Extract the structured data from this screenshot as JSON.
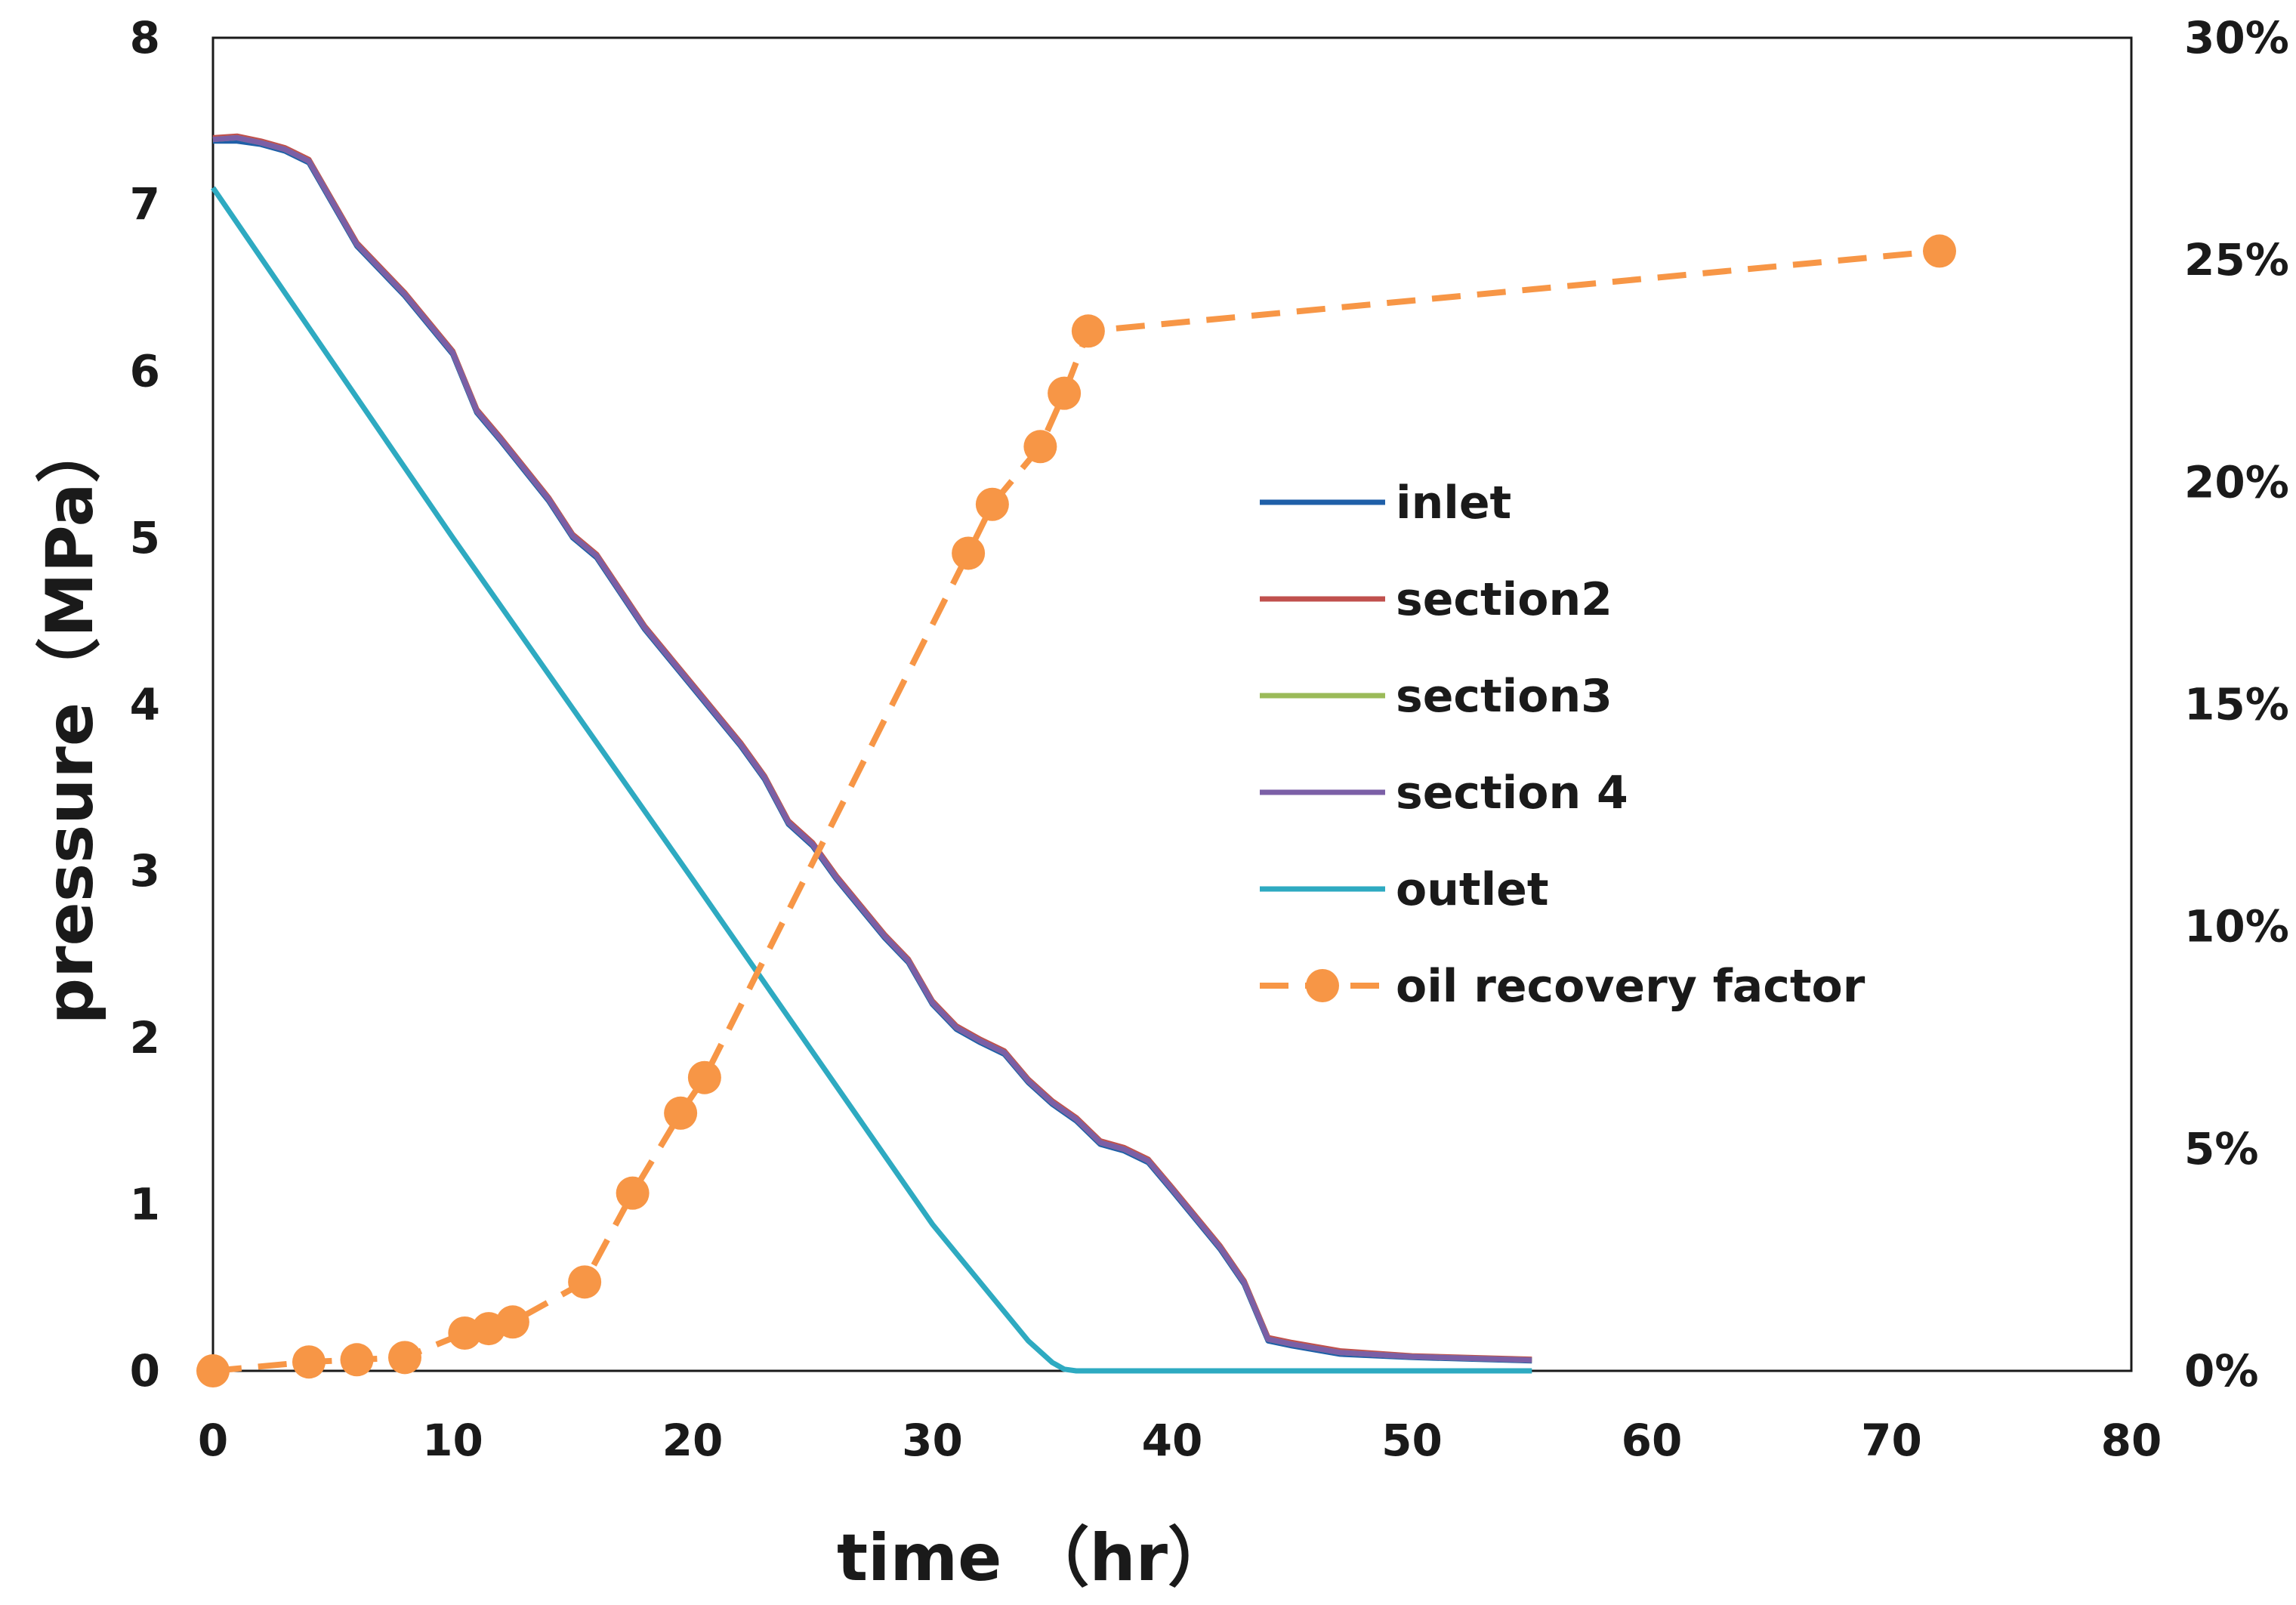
{
  "chart_data": {
    "type": "line",
    "xlabel": "time （hr）",
    "ylabel": "pressure（MPa）",
    "xlim": [
      0,
      80
    ],
    "ylim": [
      0,
      8
    ],
    "y2lim": [
      0,
      30
    ],
    "x_ticks": [
      "0",
      "10",
      "20",
      "30",
      "40",
      "50",
      "60",
      "70",
      "80"
    ],
    "y_ticks": [
      "0",
      "1",
      "2",
      "3",
      "4",
      "5",
      "6",
      "7",
      "8"
    ],
    "y2_ticks": [
      "0%",
      "5%",
      "10%",
      "15%",
      "20%",
      "25%",
      "30%"
    ],
    "grid": false,
    "legend_position": "center-right",
    "series": [
      {
        "name": "inlet",
        "color": "#1f5fa8",
        "style": "solid",
        "axis": "left",
        "x": [
          0,
          1,
          2,
          3,
          4,
          6,
          8,
          10,
          11,
          12,
          14,
          15,
          16,
          18,
          20,
          22,
          23,
          24,
          25,
          26,
          28,
          29,
          30,
          31,
          32,
          33,
          34,
          35,
          36,
          37,
          38,
          39,
          40,
          42,
          43,
          44,
          45,
          47,
          50,
          55
        ],
        "y": [
          7.38,
          7.38,
          7.36,
          7.32,
          7.25,
          6.75,
          6.45,
          6.1,
          5.75,
          5.58,
          5.22,
          5.0,
          4.88,
          4.45,
          4.1,
          3.75,
          3.55,
          3.28,
          3.15,
          2.95,
          2.6,
          2.45,
          2.2,
          2.05,
          1.97,
          1.9,
          1.73,
          1.6,
          1.5,
          1.36,
          1.32,
          1.25,
          1.08,
          0.73,
          0.52,
          0.18,
          0.15,
          0.1,
          0.08,
          0.06
        ]
      },
      {
        "name": "section2",
        "color": "#c0504d",
        "style": "solid",
        "axis": "left",
        "x": [
          0,
          1,
          2,
          3,
          4,
          6,
          8,
          10,
          11,
          12,
          14,
          15,
          16,
          18,
          20,
          22,
          23,
          24,
          25,
          26,
          28,
          29,
          30,
          31,
          32,
          33,
          34,
          35,
          36,
          37,
          38,
          39,
          40,
          42,
          43,
          44,
          45,
          47,
          50,
          55
        ],
        "y": [
          7.4,
          7.41,
          7.38,
          7.34,
          7.27,
          6.77,
          6.47,
          6.12,
          5.77,
          5.6,
          5.24,
          5.02,
          4.9,
          4.47,
          4.12,
          3.77,
          3.57,
          3.3,
          3.17,
          2.97,
          2.62,
          2.47,
          2.22,
          2.07,
          1.99,
          1.92,
          1.75,
          1.62,
          1.52,
          1.38,
          1.34,
          1.27,
          1.1,
          0.75,
          0.54,
          0.2,
          0.17,
          0.12,
          0.09,
          0.07
        ]
      },
      {
        "name": "section3",
        "color": "#9bbb59",
        "style": "solid",
        "axis": "left",
        "x": [
          0,
          1,
          2,
          3,
          4,
          6,
          8,
          10,
          11,
          12,
          14,
          15,
          16,
          18,
          20,
          22,
          23,
          24,
          25,
          26,
          28,
          29,
          30,
          31,
          32,
          33,
          34,
          35,
          36,
          37,
          38,
          39,
          40,
          42,
          43,
          44,
          45,
          47,
          50,
          55
        ],
        "y": [
          7.39,
          7.4,
          7.37,
          7.33,
          7.26,
          6.76,
          6.46,
          6.11,
          5.76,
          5.59,
          5.23,
          5.01,
          4.89,
          4.46,
          4.11,
          3.76,
          3.56,
          3.29,
          3.16,
          2.96,
          2.61,
          2.46,
          2.21,
          2.06,
          1.98,
          1.91,
          1.74,
          1.61,
          1.51,
          1.37,
          1.33,
          1.26,
          1.09,
          0.74,
          0.53,
          0.19,
          0.16,
          0.11,
          0.085,
          0.065
        ]
      },
      {
        "name": "section 4",
        "color": "#7b5fa6",
        "style": "solid",
        "axis": "left",
        "x": [
          0,
          1,
          2,
          3,
          4,
          6,
          8,
          10,
          11,
          12,
          14,
          15,
          16,
          18,
          20,
          22,
          23,
          24,
          25,
          26,
          28,
          29,
          30,
          31,
          32,
          33,
          34,
          35,
          36,
          37,
          38,
          39,
          40,
          42,
          43,
          44,
          45,
          47,
          50,
          55
        ],
        "y": [
          7.39,
          7.4,
          7.37,
          7.33,
          7.26,
          6.76,
          6.46,
          6.11,
          5.76,
          5.59,
          5.23,
          5.01,
          4.89,
          4.46,
          4.11,
          3.76,
          3.56,
          3.29,
          3.16,
          2.96,
          2.61,
          2.46,
          2.21,
          2.06,
          1.98,
          1.91,
          1.74,
          1.61,
          1.51,
          1.37,
          1.33,
          1.26,
          1.09,
          0.74,
          0.53,
          0.19,
          0.16,
          0.11,
          0.085,
          0.065
        ]
      },
      {
        "name": "outlet",
        "color": "#2eaac1",
        "style": "solid",
        "axis": "left",
        "x": [
          0,
          10,
          20,
          30,
          34,
          35,
          35.5,
          36,
          40,
          50,
          55
        ],
        "y": [
          7.1,
          5.0,
          2.95,
          0.88,
          0.18,
          0.05,
          0.01,
          0.0,
          0.0,
          0.0,
          0.0
        ]
      },
      {
        "name": "oil recovery factor",
        "color": "#f79646",
        "style": "dashed",
        "markers": true,
        "axis": "right",
        "x": [
          0,
          4,
          6,
          8,
          10.5,
          11.5,
          12.5,
          15.5,
          17.5,
          19.5,
          20.5,
          31.5,
          32.5,
          34.5,
          35.5,
          36.5,
          72
        ],
        "y": [
          0.0,
          0.2,
          0.25,
          0.3,
          0.85,
          0.95,
          1.1,
          2.0,
          4.0,
          5.8,
          6.6,
          18.4,
          19.5,
          20.8,
          22.0,
          23.4,
          25.2
        ]
      }
    ]
  }
}
